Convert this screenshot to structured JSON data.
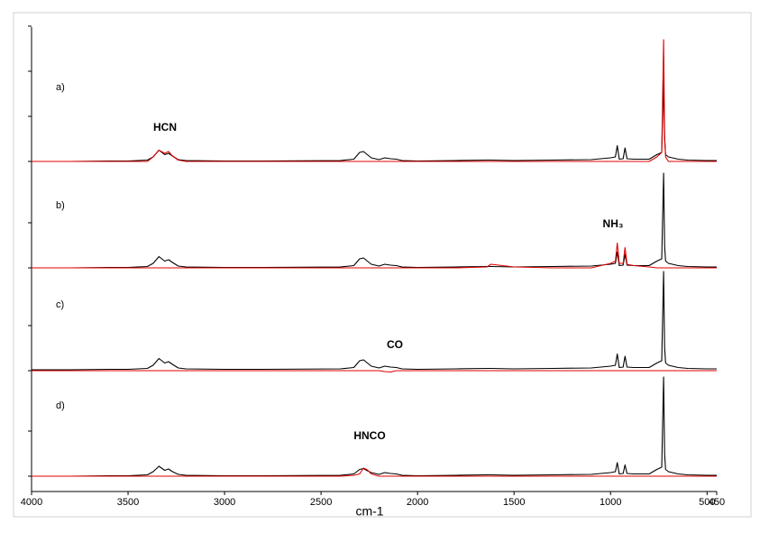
{
  "chart_data": {
    "type": "line",
    "xlabel": "cm-1",
    "xlim": [
      4000,
      450
    ],
    "xticks": [
      4000,
      3500,
      3000,
      2500,
      2000,
      1500,
      1000,
      500,
      450
    ],
    "x": [
      4000,
      3800,
      3600,
      3500,
      3400,
      3370,
      3340,
      3310,
      3290,
      3270,
      3240,
      3200,
      3000,
      2800,
      2400,
      2330,
      2300,
      2280,
      2260,
      2240,
      2200,
      2170,
      2140,
      2110,
      2080,
      2000,
      1800,
      1640,
      1620,
      1500,
      1300,
      1100,
      1000,
      975,
      965,
      955,
      935,
      925,
      915,
      880,
      800,
      760,
      735,
      725,
      720,
      715,
      700,
      650,
      600,
      500,
      450
    ],
    "panels": [
      {
        "label": "a)",
        "annotation": "HCN",
        "ylim": [
          0,
          3
        ],
        "yticks": [
          0,
          1,
          2,
          3
        ],
        "series": [
          {
            "color": "#000000",
            "values": [
              0,
              0,
              0.01,
              0.01,
              0.03,
              0.1,
              0.25,
              0.15,
              0.18,
              0.12,
              0.04,
              0.02,
              0.01,
              0.01,
              0.02,
              0.05,
              0.2,
              0.22,
              0.15,
              0.08,
              0.04,
              0.08,
              0.06,
              0.05,
              0.02,
              0.01,
              0.02,
              0.03,
              0.03,
              0.02,
              0.03,
              0.04,
              0.08,
              0.1,
              0.35,
              0.05,
              0.06,
              0.3,
              0.06,
              0.05,
              0.05,
              0.15,
              0.2,
              1.8,
              0.5,
              0.15,
              0.1,
              0.05,
              0.03,
              0.02,
              0.02
            ]
          },
          {
            "color": "#e00000",
            "values": [
              0,
              0,
              0,
              0,
              0,
              0.1,
              0.25,
              0.18,
              0.22,
              0.12,
              0.03,
              0,
              0,
              0,
              0,
              0,
              0,
              0,
              0,
              0,
              0,
              0,
              0,
              0,
              0,
              0,
              0,
              0,
              0,
              0,
              0,
              0,
              0,
              0,
              0,
              0,
              0,
              0,
              0,
              0,
              0,
              0.1,
              0.2,
              2.7,
              0.6,
              0.1,
              0,
              0,
              0,
              0,
              0
            ]
          }
        ]
      },
      {
        "label": "b)",
        "annotation": "NH₃",
        "ylim": [
          0,
          2
        ],
        "yticks": [
          0,
          1
        ],
        "series": [
          {
            "color": "#000000",
            "values": [
              0,
              0,
              0.01,
              0.01,
              0.03,
              0.1,
              0.25,
              0.15,
              0.18,
              0.12,
              0.04,
              0.02,
              0.01,
              0.01,
              0.02,
              0.05,
              0.2,
              0.22,
              0.15,
              0.08,
              0.04,
              0.08,
              0.06,
              0.05,
              0.02,
              0.01,
              0.02,
              0.03,
              0.03,
              0.02,
              0.03,
              0.04,
              0.08,
              0.1,
              0.35,
              0.05,
              0.06,
              0.3,
              0.06,
              0.05,
              0.05,
              0.15,
              0.2,
              2.1,
              0.5,
              0.15,
              0.1,
              0.05,
              0.03,
              0.02,
              0.02
            ]
          },
          {
            "color": "#e00000",
            "values": [
              0,
              0,
              0,
              0,
              0,
              0,
              0,
              0,
              0,
              0,
              0,
              0,
              0,
              0,
              0,
              0,
              0,
              0,
              0,
              0,
              0,
              0,
              0,
              0,
              0,
              0,
              0,
              0.02,
              0.08,
              0.02,
              0,
              0,
              0.1,
              0.15,
              0.55,
              0.1,
              0.1,
              0.45,
              0.08,
              0.05,
              0.02,
              0,
              0,
              0,
              0,
              0,
              0,
              0,
              0,
              0,
              0
            ]
          }
        ]
      },
      {
        "label": "c)",
        "annotation": "CO",
        "ylim": [
          0,
          2
        ],
        "yticks": [
          0,
          1
        ],
        "series": [
          {
            "color": "#000000",
            "values": [
              0.02,
              0.02,
              0.03,
              0.03,
              0.05,
              0.12,
              0.27,
              0.17,
              0.2,
              0.14,
              0.06,
              0.04,
              0.03,
              0.03,
              0.04,
              0.07,
              0.22,
              0.24,
              0.17,
              0.1,
              0.06,
              0.1,
              0.08,
              0.07,
              0.04,
              0.03,
              0.04,
              0.05,
              0.05,
              0.04,
              0.05,
              0.06,
              0.1,
              0.12,
              0.37,
              0.07,
              0.08,
              0.32,
              0.08,
              0.07,
              0.07,
              0.17,
              0.22,
              2.2,
              0.52,
              0.17,
              0.12,
              0.07,
              0.05,
              0.04,
              0.04
            ]
          },
          {
            "color": "#e00000",
            "values": [
              0,
              0,
              0,
              0,
              0,
              0,
              0,
              0,
              0,
              0,
              0,
              0,
              0,
              0,
              0,
              0,
              0,
              0,
              0,
              0,
              0,
              -0.02,
              -0.03,
              0,
              0,
              0,
              0,
              0,
              0,
              0,
              0,
              0,
              0,
              0,
              0,
              0,
              0,
              0,
              0,
              0,
              0,
              0,
              0,
              0,
              0,
              0,
              0,
              0,
              0,
              0,
              0
            ]
          }
        ]
      },
      {
        "label": "d)",
        "annotation": "HNCO",
        "ylim": [
          0,
          2
        ],
        "yticks": [
          0,
          1
        ],
        "series": [
          {
            "color": "#000000",
            "values": [
              0,
              0,
              0.01,
              0.01,
              0.03,
              0.1,
              0.22,
              0.13,
              0.16,
              0.1,
              0.04,
              0.02,
              0.01,
              0.01,
              0.02,
              0.05,
              0.15,
              0.17,
              0.12,
              0.08,
              0.04,
              0.08,
              0.06,
              0.05,
              0.02,
              0.01,
              0.02,
              0.03,
              0.03,
              0.02,
              0.03,
              0.04,
              0.08,
              0.1,
              0.3,
              0.05,
              0.06,
              0.25,
              0.06,
              0.05,
              0.05,
              0.15,
              0.2,
              2.2,
              0.5,
              0.15,
              0.1,
              0.05,
              0.03,
              0.02,
              0.02
            ]
          },
          {
            "color": "#e00000",
            "values": [
              0,
              0,
              0,
              0,
              0,
              0,
              0,
              0,
              0,
              0,
              0,
              0,
              0,
              0,
              0,
              0.02,
              0.05,
              0.18,
              0.14,
              0.05,
              0,
              0,
              0,
              0,
              0,
              0,
              0,
              0,
              0,
              0,
              0,
              0,
              0,
              0,
              0,
              0,
              0,
              0,
              0,
              0,
              0,
              0,
              0,
              0,
              0,
              0,
              0,
              0,
              0,
              0,
              0
            ]
          }
        ]
      }
    ]
  }
}
